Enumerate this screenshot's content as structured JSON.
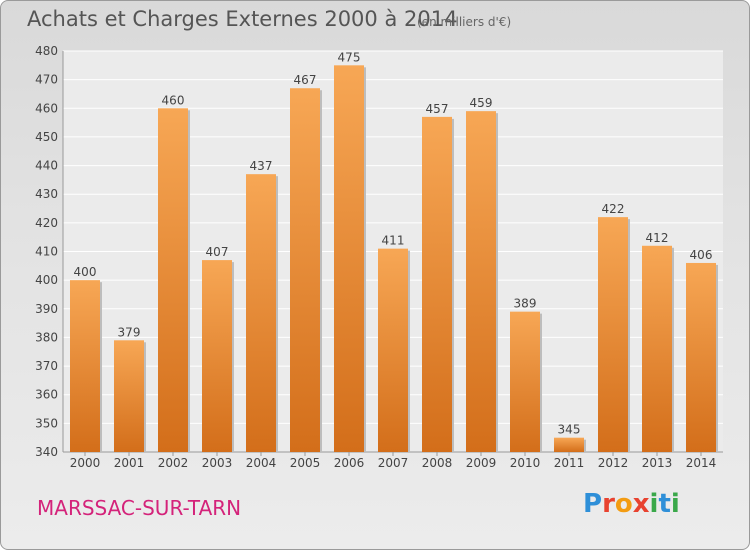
{
  "title": "Achats et Charges Externes 2000 à 2014",
  "subtitle": "(en milliers d'€)",
  "commune": "MARSSAC-SUR-TARN",
  "logo": [
    "P",
    "r",
    "o",
    "x",
    "i",
    "t",
    "i"
  ],
  "logo_colors": [
    "#2e8fd8",
    "#e8422f",
    "#f39c12",
    "#e8422f",
    "#3aa84a",
    "#2e8fd8",
    "#3aa84a"
  ],
  "colors": {
    "bar_top": "#f7a755",
    "bar_bottom": "#d36e1a",
    "commune": "#d4237a"
  },
  "chart_data": {
    "type": "bar",
    "categories": [
      "2000",
      "2001",
      "2002",
      "2003",
      "2004",
      "2005",
      "2006",
      "2007",
      "2008",
      "2009",
      "2010",
      "2011",
      "2012",
      "2013",
      "2014"
    ],
    "values": [
      400,
      379,
      460,
      407,
      437,
      467,
      475,
      411,
      457,
      459,
      389,
      345,
      422,
      412,
      406
    ],
    "ylim": [
      340,
      480
    ],
    "yticks": [
      340,
      350,
      360,
      370,
      380,
      390,
      400,
      410,
      420,
      430,
      440,
      450,
      460,
      470,
      480
    ],
    "grid": true,
    "xlabel": "",
    "ylabel": ""
  }
}
